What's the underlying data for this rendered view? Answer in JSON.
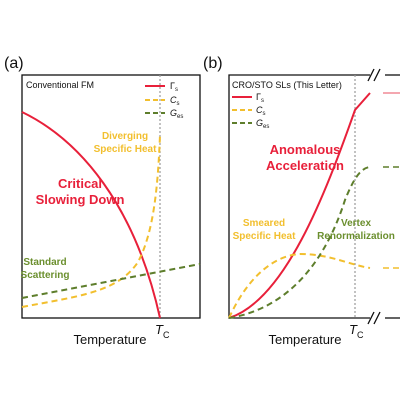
{
  "panel_a": {
    "label": "(a)",
    "title": "Conventional FM",
    "legend": [
      {
        "symbol": "Γ",
        "sub": "s"
      },
      {
        "symbol": "C",
        "sub": "s"
      },
      {
        "symbol": "G",
        "sub": "es"
      }
    ],
    "annotations": {
      "specific_heat": [
        "Diverging",
        "Specific Heat"
      ],
      "slowing": [
        "Critical",
        "Slowing Down"
      ],
      "scattering": [
        "Standard",
        "Scattering"
      ]
    },
    "x_label": "Temperature",
    "tc": {
      "symbol": "T",
      "sub": "C"
    }
  },
  "panel_b": {
    "label": "(b)",
    "title": "CRO/STO SLs (This Letter)",
    "legend": [
      {
        "symbol": "Γ",
        "sub": "s"
      },
      {
        "symbol": "C",
        "sub": "s"
      },
      {
        "symbol": "G",
        "sub": "es"
      }
    ],
    "annotations": {
      "acceleration": [
        "Anomalous",
        "Acceleration"
      ],
      "specific_heat": [
        "Smeared",
        "Specific Heat"
      ],
      "vertex": [
        "Vertex",
        "Renormalization"
      ]
    },
    "x_label": "Temperature",
    "tc": {
      "symbol": "T",
      "sub": "C"
    }
  }
}
